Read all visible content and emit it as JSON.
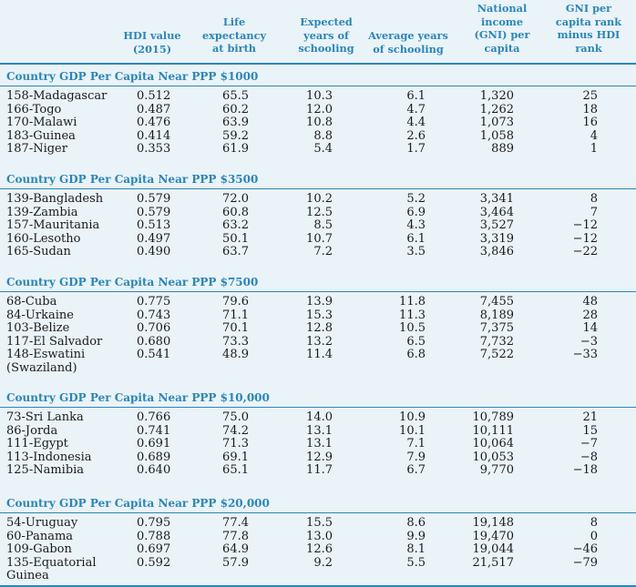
{
  "header": {
    "hdi": [
      "HDI value",
      "(2015)"
    ],
    "life": [
      "Life",
      "expectancy",
      "at birth"
    ],
    "exp": [
      "Expected",
      "years of",
      "schooling"
    ],
    "avg": [
      "Average years",
      "of schooling"
    ],
    "gni": [
      "National",
      "income",
      "(GNI) per",
      "capita"
    ],
    "rank": [
      "GNI per",
      "capita rank",
      "minus HDI",
      "rank"
    ]
  },
  "sections": [
    {
      "title": "Country GDP Per Capita Near PPP $1000",
      "rows": [
        {
          "country": "158-Madagascar",
          "hdi": "0.512",
          "life": "65.5",
          "exp": "10.3",
          "avg": "6.1",
          "gni": "1,320",
          "rank": "25"
        },
        {
          "country": "166-Togo",
          "hdi": "0.487",
          "life": "60.2",
          "exp": "12.0",
          "avg": "4.7",
          "gni": "1,262",
          "rank": "18"
        },
        {
          "country": "170-Malawi",
          "hdi": "0.476",
          "life": "63.9",
          "exp": "10.8",
          "avg": "4.4",
          "gni": "1,073",
          "rank": "16"
        },
        {
          "country": "183-Guinea",
          "hdi": "0.414",
          "life": "59.2",
          "exp": "8.8",
          "avg": "2.6",
          "gni": "1,058",
          "rank": "4"
        },
        {
          "country": "187-Niger",
          "hdi": "0.353",
          "life": "61.9",
          "exp": "5.4",
          "avg": "1.7",
          "gni": "889",
          "rank": "1"
        }
      ]
    },
    {
      "title": "Country GDP Per Capita Near PPP $3500",
      "rows": [
        {
          "country": "139-Bangladesh",
          "hdi": "0.579",
          "life": "72.0",
          "exp": "10.2",
          "avg": "5.2",
          "gni": "3,341",
          "rank": "8"
        },
        {
          "country": "139-Zambia",
          "hdi": "0.579",
          "life": "60.8",
          "exp": "12.5",
          "avg": "6.9",
          "gni": "3,464",
          "rank": "7"
        },
        {
          "country": "157-Mauritania",
          "hdi": "0.513",
          "life": "63.2",
          "exp": "8.5",
          "avg": "4.3",
          "gni": "3,527",
          "rank": "−12"
        },
        {
          "country": "160-Lesotho",
          "hdi": "0.497",
          "life": "50.1",
          "exp": "10.7",
          "avg": "6.1",
          "gni": "3,319",
          "rank": "−12"
        },
        {
          "country": "165-Sudan",
          "hdi": "0.490",
          "life": "63.7",
          "exp": "7.2",
          "avg": "3.5",
          "gni": "3,846",
          "rank": "−22"
        }
      ]
    },
    {
      "title": "Country GDP Per Capita Near PPP $7500",
      "rows": [
        {
          "country": "68-Cuba",
          "hdi": "0.775",
          "life": "79.6",
          "exp": "13.9",
          "avg": "11.8",
          "gni": "7,455",
          "rank": "48"
        },
        {
          "country": "84-Urkaine",
          "hdi": "0.743",
          "life": "71.1",
          "exp": "15.3",
          "avg": "11.3",
          "gni": "8,189",
          "rank": "28"
        },
        {
          "country": "103-Belize",
          "hdi": "0.706",
          "life": "70.1",
          "exp": "12.8",
          "avg": "10.5",
          "gni": "7,375",
          "rank": "14"
        },
        {
          "country": "117-El Salvador",
          "hdi": "0.680",
          "life": "73.3",
          "exp": "13.2",
          "avg": "6.5",
          "gni": "7,732",
          "rank": "−3"
        },
        {
          "country": "148-Eswatini",
          "country2": "(Swaziland)",
          "hdi": "0.541",
          "life": "48.9",
          "exp": "11.4",
          "avg": "6.8",
          "gni": "7,522",
          "rank": "−33"
        }
      ]
    },
    {
      "title": "Country GDP Per Capita Near PPP $10,000",
      "rows": [
        {
          "country": "73-Sri Lanka",
          "hdi": "0.766",
          "life": "75.0",
          "exp": "14.0",
          "avg": "10.9",
          "gni": "10,789",
          "rank": "21"
        },
        {
          "country": "86-Jorda",
          "hdi": "0.741",
          "life": "74.2",
          "exp": "13.1",
          "avg": "10.1",
          "gni": "10,111",
          "rank": "15"
        },
        {
          "country": "111-Egypt",
          "hdi": "0.691",
          "life": "71.3",
          "exp": "13.1",
          "avg": "7.1",
          "gni": "10,064",
          "rank": "−7"
        },
        {
          "country": "113-Indonesia",
          "hdi": "0.689",
          "life": "69.1",
          "exp": "12.9",
          "avg": "7.9",
          "gni": "10,053",
          "rank": "−8"
        },
        {
          "country": "125-Namibia",
          "hdi": "0.640",
          "life": "65.1",
          "exp": "11.7",
          "avg": "6.7",
          "gni": "9,770",
          "rank": "−18"
        }
      ]
    },
    {
      "title": "Country GDP Per Capita Near PPP $20,000",
      "rows": [
        {
          "country": "54-Uruguay",
          "hdi": "0.795",
          "life": "77.4",
          "exp": "15.5",
          "avg": "8.6",
          "gni": "19,148",
          "rank": "8"
        },
        {
          "country": "60-Panama",
          "hdi": "0.788",
          "life": "77.8",
          "exp": "13.0",
          "avg": "9.9",
          "gni": "19,470",
          "rank": "0"
        },
        {
          "country": "109-Gabon",
          "hdi": "0.697",
          "life": "64.9",
          "exp": "12.6",
          "avg": "8.1",
          "gni": "19,044",
          "rank": "−46"
        },
        {
          "country": "135-Equatorial",
          "country2": "Guinea",
          "hdi": "0.592",
          "life": "57.9",
          "exp": "9.2",
          "avg": "5.5",
          "gni": "21,517",
          "rank": "−79"
        }
      ]
    }
  ]
}
